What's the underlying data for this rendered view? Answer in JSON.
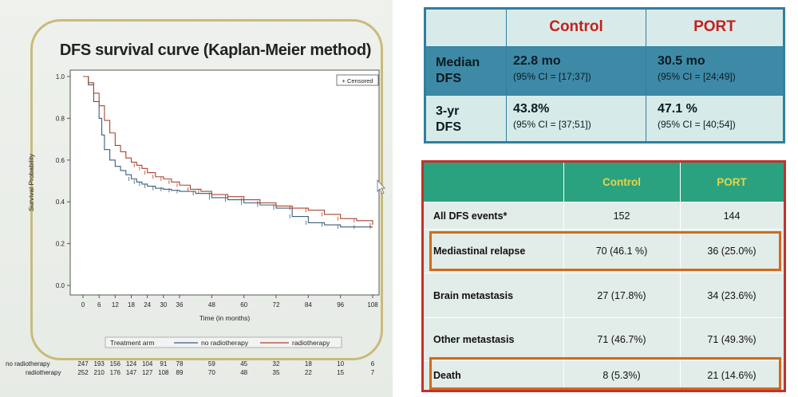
{
  "chart_data": {
    "type": "line",
    "title": "DFS survival curve (Kaplan-Meier method)",
    "xlabel": "Time (in months)",
    "ylabel": "Survival Probability",
    "xlim": [
      0,
      108
    ],
    "ylim": [
      0,
      1.0
    ],
    "x_ticks": [
      "0",
      "6",
      "12",
      "18",
      "24",
      "30",
      "36",
      "48",
      "60",
      "72",
      "84",
      "96",
      "108"
    ],
    "y_ticks": [
      "0.0",
      "0.2",
      "0.4",
      "0.6",
      "0.8",
      "1.0"
    ],
    "legend_title": "Treatment arm",
    "censored_label": "+ Censored",
    "series": [
      {
        "name": "no radiotherapy",
        "color": "#3b5f7e",
        "x": [
          0,
          2,
          4,
          6,
          7,
          8,
          10,
          12,
          14,
          16,
          18,
          20,
          22,
          24,
          27,
          30,
          33,
          36,
          42,
          48,
          54,
          60,
          66,
          72,
          78,
          84,
          90,
          96,
          102,
          108
        ],
        "y": [
          1.0,
          0.96,
          0.88,
          0.8,
          0.72,
          0.65,
          0.6,
          0.57,
          0.55,
          0.53,
          0.51,
          0.495,
          0.485,
          0.475,
          0.465,
          0.46,
          0.455,
          0.45,
          0.44,
          0.42,
          0.41,
          0.395,
          0.385,
          0.37,
          0.33,
          0.3,
          0.29,
          0.28,
          0.28,
          0.28
        ]
      },
      {
        "name": "radiotherapy",
        "color": "#a8442f",
        "x": [
          0,
          2,
          4,
          6,
          8,
          10,
          12,
          14,
          16,
          18,
          20,
          22,
          24,
          27,
          30,
          33,
          36,
          40,
          44,
          48,
          54,
          60,
          66,
          72,
          78,
          84,
          90,
          96,
          102,
          108
        ],
        "y": [
          1.0,
          0.97,
          0.92,
          0.86,
          0.79,
          0.73,
          0.67,
          0.64,
          0.61,
          0.59,
          0.575,
          0.56,
          0.54,
          0.52,
          0.51,
          0.495,
          0.48,
          0.46,
          0.45,
          0.435,
          0.425,
          0.41,
          0.395,
          0.38,
          0.37,
          0.36,
          0.34,
          0.32,
          0.31,
          0.29
        ]
      }
    ],
    "at_risk": {
      "times": [
        "0",
        "6",
        "12",
        "18",
        "24",
        "30",
        "36",
        "48",
        "60",
        "72",
        "84",
        "96",
        "108"
      ],
      "rows": [
        {
          "label": "no radiotherapy",
          "values": [
            "247",
            "193",
            "156",
            "124",
            "104",
            "91",
            "78",
            "59",
            "45",
            "32",
            "18",
            "10",
            "6"
          ]
        },
        {
          "label": "radiotherapy",
          "values": [
            "252",
            "210",
            "176",
            "147",
            "127",
            "108",
            "89",
            "70",
            "48",
            "35",
            "22",
            "15",
            "7"
          ]
        }
      ]
    }
  },
  "table_top": {
    "columns": [
      "",
      "Control",
      "PORT"
    ],
    "rows": [
      {
        "label_line1": "Median",
        "label_line2": "DFS",
        "control_value": "22.8 mo",
        "control_ci": "(95% CI = [17;37])",
        "port_value": "30.5 mo",
        "port_ci": "(95% CI = [24;49])"
      },
      {
        "label_line1": "3-yr",
        "label_line2": "DFS",
        "control_value": "43.8%",
        "control_ci": "(95% CI = [37;51])",
        "port_value": "47.1 %",
        "port_ci": "(95% CI = [40;54])"
      }
    ]
  },
  "table_bottom": {
    "columns": [
      "",
      "Control",
      "PORT"
    ],
    "rows": [
      {
        "label": "All DFS events*",
        "control": "152",
        "port": "144"
      },
      {
        "label": "Mediastinal relapse",
        "control": "70 (46.1 %)",
        "port": "36 (25.0%)"
      },
      {
        "label": "Brain metastasis",
        "control": "27 (17.8%)",
        "port": "34 (23.6%)"
      },
      {
        "label": "Other metastasis",
        "control": "71 (46.7%)",
        "port": "71 (49.3%)"
      },
      {
        "label": "Death",
        "control": "8 (5.3%)",
        "port": "21 (14.6%)"
      }
    ]
  }
}
